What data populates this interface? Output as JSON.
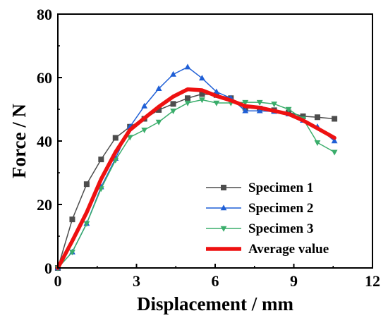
{
  "chart_data": {
    "type": "line",
    "xlabel": "Displacement / mm",
    "ylabel": "Force / N",
    "xlim": [
      0,
      12
    ],
    "ylim": [
      0,
      80
    ],
    "x_ticks": [
      0,
      3,
      6,
      9,
      12
    ],
    "y_ticks": [
      0,
      20,
      40,
      60,
      80
    ],
    "grid": false,
    "legend_position": "bottom-right",
    "series": [
      {
        "name": "Specimen 1",
        "color": "#4d4d4d",
        "marker": "square",
        "x": [
          0,
          0.55,
          1.1,
          1.65,
          2.2,
          2.75,
          3.3,
          3.85,
          4.4,
          4.95,
          5.5,
          6.05,
          6.6,
          7.15,
          7.7,
          8.25,
          8.8,
          9.35,
          9.9,
          10.55
        ],
        "y": [
          0,
          15.3,
          26.4,
          34.2,
          41,
          44.5,
          47,
          49.8,
          51.7,
          53.5,
          54.8,
          54.5,
          53.5,
          50.5,
          50.2,
          49.7,
          49,
          47.8,
          47.5,
          47
        ]
      },
      {
        "name": "Specimen 2",
        "color": "#1f5fd6",
        "marker": "triangle-up",
        "x": [
          0,
          0.55,
          1.1,
          1.65,
          2.2,
          2.75,
          3.3,
          3.85,
          4.4,
          4.95,
          5.5,
          6.05,
          6.6,
          7.15,
          7.7,
          8.25,
          8.8,
          9.35,
          9.9,
          10.55
        ],
        "y": [
          0,
          5,
          14,
          25.5,
          34.5,
          44.5,
          51,
          56.5,
          61,
          63.3,
          59.8,
          55.5,
          53.5,
          49.5,
          49.5,
          49.3,
          48.5,
          46.5,
          44.5,
          40
        ]
      },
      {
        "name": "Specimen 3",
        "color": "#3aad6b",
        "marker": "triangle-down",
        "x": [
          0,
          0.55,
          1.1,
          1.65,
          2.2,
          2.75,
          3.3,
          3.85,
          4.4,
          4.95,
          5.5,
          6.05,
          6.6,
          7.15,
          7.7,
          8.25,
          8.8,
          9.35,
          9.9,
          10.55
        ],
        "y": [
          0,
          5,
          14,
          25,
          34,
          41.2,
          43.5,
          46,
          49.5,
          52,
          53,
          52,
          52,
          52.2,
          52.2,
          51.7,
          50,
          47,
          39.5,
          36.5
        ]
      },
      {
        "name": "Average value",
        "color": "#ee1111",
        "marker": "none",
        "x": [
          0,
          0.55,
          1.1,
          1.65,
          2.2,
          2.75,
          3.3,
          3.85,
          4.4,
          4.95,
          5.5,
          6.05,
          6.6,
          7.15,
          7.7,
          8.25,
          8.8,
          9.35,
          9.9,
          10.55
        ],
        "y": [
          0,
          8.5,
          17.5,
          28,
          36.5,
          43.5,
          47.2,
          50.8,
          54,
          56.3,
          56,
          54.2,
          52.8,
          51,
          50.5,
          49.5,
          48.5,
          46.5,
          44,
          41
        ]
      }
    ]
  }
}
